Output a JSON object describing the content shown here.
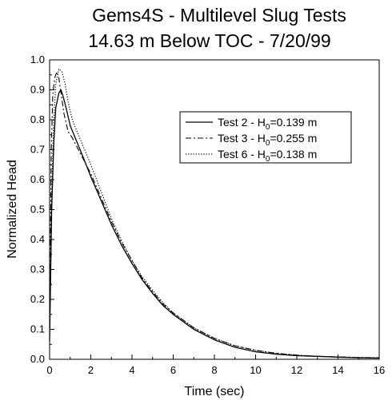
{
  "chart_data": {
    "type": "line",
    "title": "Gems4S - Multilevel Slug Tests",
    "subtitle": "14.63 m Below TOC - 7/20/99",
    "xlabel": "Time (sec)",
    "ylabel": "Normalized Head",
    "xlim": [
      0,
      16
    ],
    "ylim": [
      0,
      1.0
    ],
    "x_ticks": [
      "0",
      "2",
      "4",
      "6",
      "8",
      "10",
      "12",
      "14",
      "16"
    ],
    "y_ticks": [
      "0.0",
      "0.1",
      "0.2",
      "0.3",
      "0.4",
      "0.5",
      "0.6",
      "0.7",
      "0.8",
      "0.9",
      "1.0"
    ],
    "grid": false,
    "legend_position": "upper-right",
    "series": [
      {
        "name": "Test 2 - H0=0.139 m",
        "legend_main": "Test 2 - H",
        "legend_sub": "0",
        "legend_tail": "=0.139 m",
        "style": "solid",
        "x": [
          0,
          0.1,
          0.2,
          0.3,
          0.45,
          0.55,
          0.65,
          0.8,
          1.0,
          1.3,
          1.6,
          2.0,
          2.5,
          3.0,
          3.5,
          4.0,
          4.5,
          5.0,
          5.5,
          6.0,
          7.0,
          8.0,
          9.0,
          10.0,
          11.0,
          12.0,
          13.0,
          14.0,
          15.0,
          16.0
        ],
        "y": [
          0.06,
          0.5,
          0.72,
          0.84,
          0.89,
          0.9,
          0.88,
          0.84,
          0.78,
          0.73,
          0.68,
          0.61,
          0.53,
          0.45,
          0.38,
          0.32,
          0.265,
          0.22,
          0.18,
          0.15,
          0.1,
          0.065,
          0.04,
          0.025,
          0.017,
          0.012,
          0.01,
          0.007,
          0.005,
          0.004
        ]
      },
      {
        "name": "Test 3 - H0=0.255 m",
        "legend_main": "Test 3 - H",
        "legend_sub": "0",
        "legend_tail": "=0.255 m",
        "style": "dashdot",
        "x": [
          0,
          0.08,
          0.15,
          0.25,
          0.35,
          0.45,
          0.55,
          0.7,
          0.9,
          1.1,
          1.4,
          1.7,
          2.0,
          2.5,
          3.0,
          3.5,
          4.0,
          4.5,
          5.0,
          5.5,
          6.0,
          7.0,
          8.0,
          9.0,
          10.0,
          11.0,
          12.0,
          13.0,
          14.0,
          15.0,
          16.0
        ],
        "y": [
          0.1,
          0.7,
          0.88,
          0.94,
          0.96,
          0.94,
          0.89,
          0.82,
          0.76,
          0.74,
          0.7,
          0.66,
          0.62,
          0.54,
          0.46,
          0.39,
          0.33,
          0.27,
          0.225,
          0.185,
          0.155,
          0.105,
          0.07,
          0.045,
          0.03,
          0.02,
          0.014,
          0.01,
          0.008,
          0.006,
          0.005
        ]
      },
      {
        "name": "Test 6 - H0=0.138 m",
        "legend_main": "Test 6 - H",
        "legend_sub": "0",
        "legend_tail": "=0.138 m",
        "style": "dotted",
        "x": [
          0,
          0.1,
          0.2,
          0.3,
          0.45,
          0.6,
          0.75,
          0.9,
          1.1,
          1.4,
          1.7,
          2.0,
          2.5,
          3.0,
          3.5,
          4.0,
          4.5,
          5.0,
          5.5,
          6.0,
          7.0,
          8.0,
          9.0,
          10.0,
          11.0,
          12.0,
          13.0,
          14.0,
          15.0,
          16.0
        ],
        "y": [
          0.08,
          0.55,
          0.8,
          0.92,
          0.97,
          0.96,
          0.92,
          0.86,
          0.8,
          0.75,
          0.7,
          0.65,
          0.56,
          0.47,
          0.395,
          0.33,
          0.275,
          0.23,
          0.19,
          0.155,
          0.105,
          0.07,
          0.045,
          0.03,
          0.02,
          0.014,
          0.01,
          0.008,
          0.006,
          0.005
        ]
      }
    ]
  }
}
